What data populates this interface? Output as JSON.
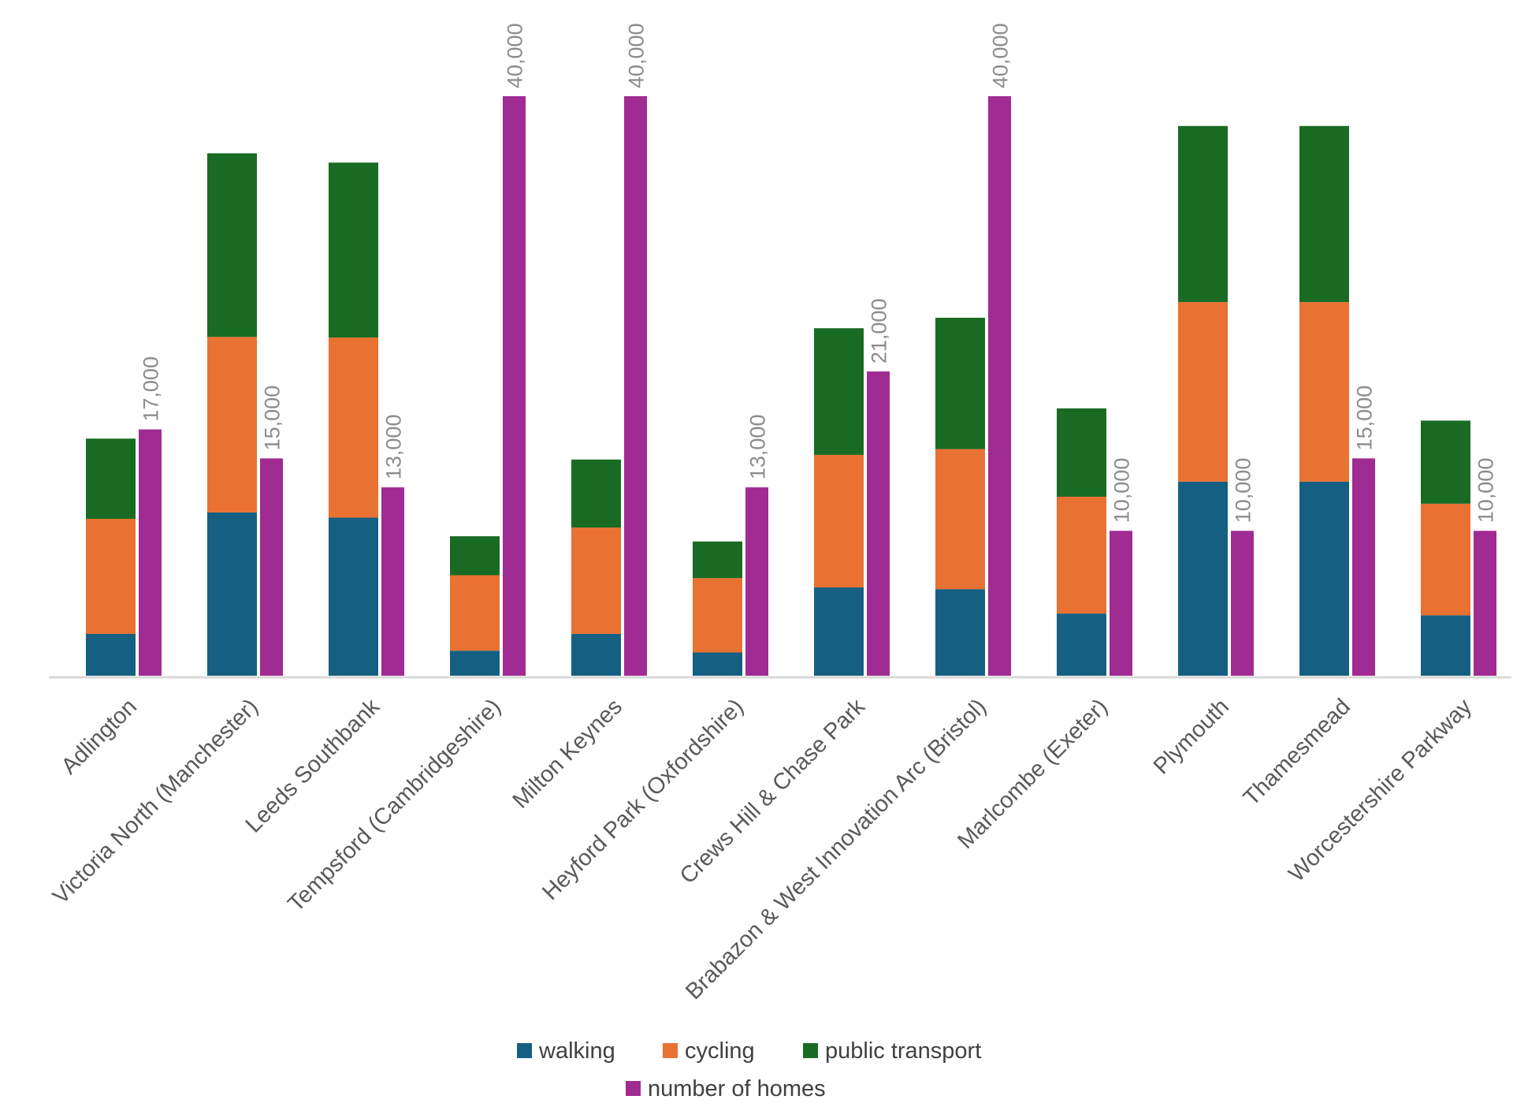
{
  "chart_data": {
    "type": "bar",
    "title": "",
    "xlabel": "",
    "ylabel": "",
    "grid": false,
    "legend_position": "bottom",
    "categories": [
      "Adlington",
      "Victoria North (Manchester)",
      "Leeds Southbank",
      "Tempsford (Cambridgeshire)",
      "Milton Keynes",
      "Heyford Park (Oxfordshire)",
      "Crews Hill & Chase Park",
      "Brabazon & West Innovation Arc (Bristol)",
      "Marlcombe (Exeter)",
      "Plymouth",
      "Thamesmead",
      "Worcestershire Parkway"
    ],
    "stacked_ylim": [
      0,
      100
    ],
    "stacked_series": [
      {
        "name": "walking",
        "color": "#156082",
        "values": [
          7.2,
          28.1,
          27.2,
          4.3,
          7.2,
          4.0,
          15.2,
          14.9,
          10.7,
          33.4,
          33.4,
          10.4
        ]
      },
      {
        "name": "cycling",
        "color": "#e97132",
        "values": [
          19.8,
          30.2,
          31.0,
          13.0,
          18.3,
          12.8,
          22.8,
          24.1,
          20.1,
          30.9,
          30.9,
          19.2
        ]
      },
      {
        "name": "public transport",
        "color": "#196b24",
        "values": [
          13.8,
          31.6,
          30.1,
          6.7,
          11.7,
          6.3,
          21.8,
          22.6,
          15.2,
          30.3,
          30.3,
          14.3
        ]
      }
    ],
    "homes_series": {
      "name": "number of homes",
      "color": "#a02b93",
      "ylim": [
        0,
        40000
      ],
      "values": [
        17000,
        15000,
        13000,
        40000,
        40000,
        13000,
        21000,
        40000,
        10000,
        10000,
        15000,
        10000
      ],
      "labels": [
        "17,000",
        "15,000",
        "13,000",
        "40,000",
        "40,000",
        "13,000",
        "21,000",
        "40,000",
        "10,000",
        "10,000",
        "15,000",
        "10,000"
      ]
    },
    "legend": [
      "walking",
      "cycling",
      "public transport",
      "number of homes"
    ]
  }
}
